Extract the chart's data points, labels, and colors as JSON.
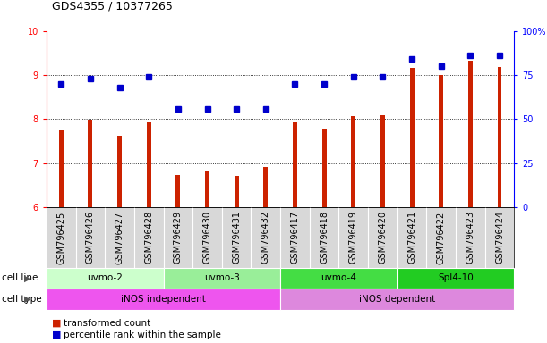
{
  "title": "GDS4355 / 10377265",
  "samples": [
    "GSM796425",
    "GSM796426",
    "GSM796427",
    "GSM796428",
    "GSM796429",
    "GSM796430",
    "GSM796431",
    "GSM796432",
    "GSM796417",
    "GSM796418",
    "GSM796419",
    "GSM796420",
    "GSM796421",
    "GSM796422",
    "GSM796423",
    "GSM796424"
  ],
  "bar_values": [
    7.77,
    7.98,
    7.62,
    7.93,
    6.74,
    6.82,
    6.72,
    6.92,
    7.92,
    7.79,
    8.07,
    8.09,
    9.17,
    9.0,
    9.33,
    9.18
  ],
  "dot_values_pct": [
    70,
    73,
    68,
    74,
    56,
    56,
    56,
    56,
    70,
    70,
    74,
    74,
    84,
    80,
    86,
    86
  ],
  "bar_color": "#cc2200",
  "dot_color": "#0000cc",
  "ylim_left": [
    6,
    10
  ],
  "ylim_right": [
    0,
    100
  ],
  "yticks_left": [
    6,
    7,
    8,
    9,
    10
  ],
  "yticks_right": [
    0,
    25,
    50,
    75,
    100
  ],
  "grid_lines": [
    7,
    8,
    9
  ],
  "cell_line_groups": [
    {
      "label": "uvmo-2",
      "start": 0,
      "end": 4,
      "color": "#ccffcc"
    },
    {
      "label": "uvmo-3",
      "start": 4,
      "end": 8,
      "color": "#99ee99"
    },
    {
      "label": "uvmo-4",
      "start": 8,
      "end": 12,
      "color": "#44dd44"
    },
    {
      "label": "Spl4-10",
      "start": 12,
      "end": 16,
      "color": "#22cc22"
    }
  ],
  "cell_type_groups": [
    {
      "label": "iNOS independent",
      "start": 0,
      "end": 8,
      "color": "#ee55ee"
    },
    {
      "label": "iNOS dependent",
      "start": 8,
      "end": 16,
      "color": "#dd88dd"
    }
  ],
  "legend_bar_label": "transformed count",
  "legend_dot_label": "percentile rank within the sample",
  "cell_line_label": "cell line",
  "cell_type_label": "cell type",
  "bar_width": 0.15,
  "dot_size": 4,
  "label_fontsize": 7,
  "tick_fontsize": 7,
  "title_fontsize": 9,
  "group_fontsize": 7.5,
  "legend_fontsize": 7.5
}
